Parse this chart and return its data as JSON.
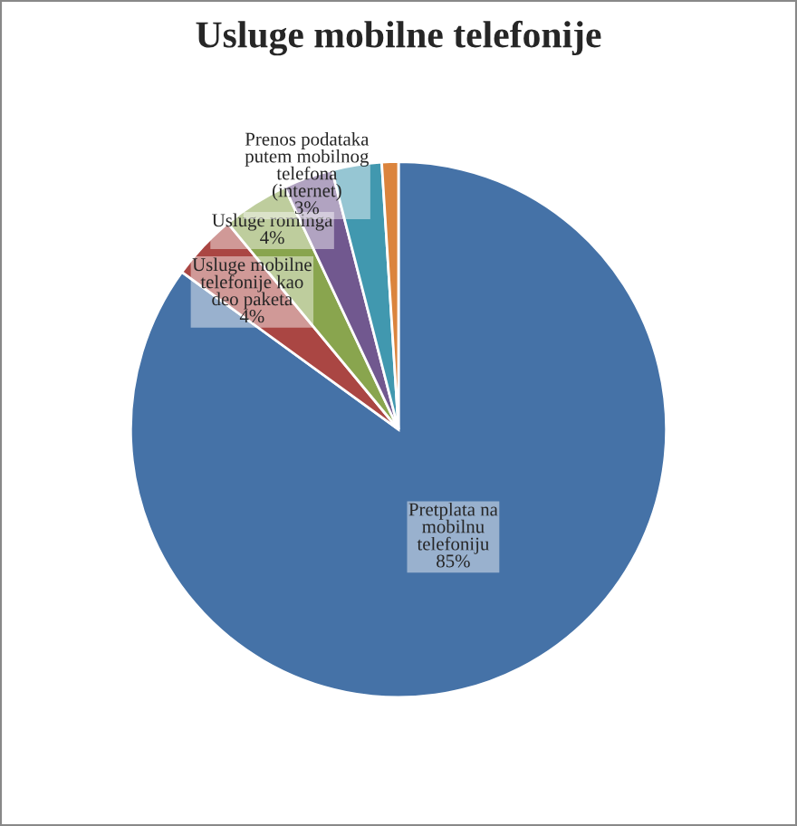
{
  "chart_data": {
    "type": "pie",
    "title": "Usluge mobilne telefonije",
    "categories": [
      "Pretplata na\nmobilnu\ntelefoniju",
      "Usluge mobilne\ntelefonije kao\ndeo paketa",
      "Usluge rominga",
      "Prenos podataka\nputem mobilnog\ntelefona\n(internet)",
      null,
      null
    ],
    "values": [
      85,
      4,
      4,
      3,
      3,
      1
    ],
    "value_labels": [
      "85%",
      "4%",
      "4%",
      "3%",
      null,
      null
    ],
    "colors": [
      "#4572a7",
      "#aa4643",
      "#89a54e",
      "#71588f",
      "#4198af",
      "#db843d"
    ],
    "legend": false
  }
}
